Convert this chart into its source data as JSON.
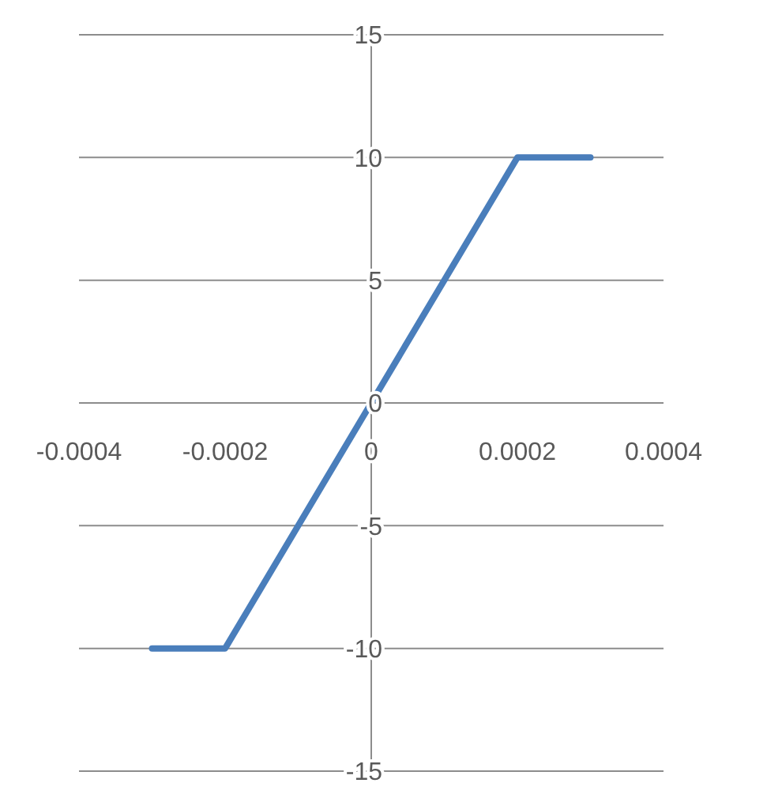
{
  "chart_data": {
    "type": "line",
    "x": [
      -0.0003,
      -0.0002,
      0.0002,
      0.0003
    ],
    "series": [
      {
        "color": "#4a7ebb",
        "values": [
          -10,
          -10,
          10,
          10
        ]
      }
    ],
    "xlim": [
      -0.0004,
      0.0004
    ],
    "xticks": [
      -0.0004,
      -0.0002,
      0,
      0.0002,
      0.0004
    ],
    "ylim": [
      -15,
      15
    ],
    "yticks": [
      -15,
      -10,
      -5,
      0,
      5,
      10,
      15
    ],
    "grid": "y",
    "marker": "none",
    "line_style": "solid"
  }
}
